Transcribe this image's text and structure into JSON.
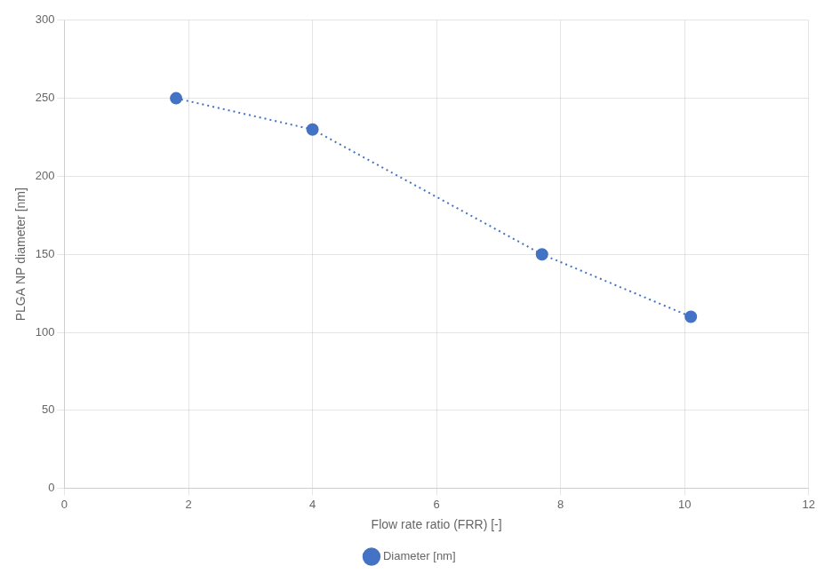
{
  "chart_data": {
    "type": "line",
    "xlabel": "Flow rate ratio (FRR) [-]",
    "ylabel": "PLGA NP diameter [nm]",
    "x": [
      1.8,
      4.0,
      7.7,
      10.1
    ],
    "series": [
      {
        "name": "Diameter [nm]",
        "color": "#4472c4",
        "marker": "circle",
        "line_style": "dotted",
        "values": [
          250,
          230,
          150,
          110
        ]
      }
    ],
    "xlim": [
      0,
      12
    ],
    "ylim": [
      0,
      300
    ],
    "xticks": [
      0,
      2,
      4,
      6,
      8,
      10,
      12
    ],
    "yticks": [
      0,
      50,
      100,
      150,
      200,
      250,
      300
    ],
    "grid": true,
    "legend": "bottom"
  }
}
